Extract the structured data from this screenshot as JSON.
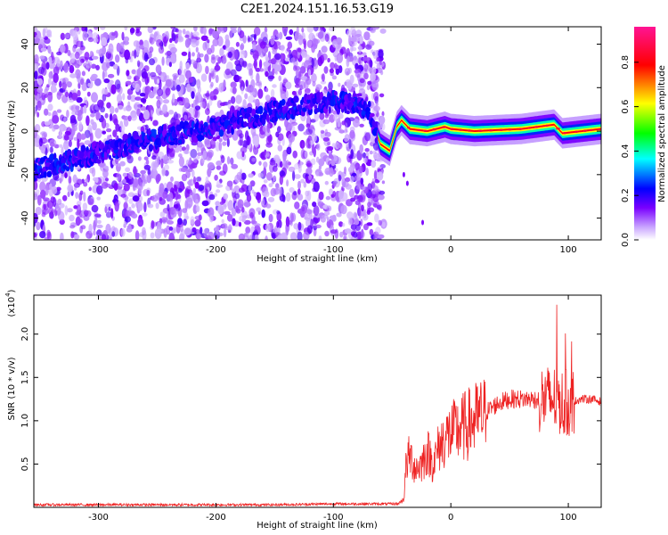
{
  "title": "C2E1.2024.151.16.53.G19",
  "chart_data": [
    {
      "type": "heatmap",
      "title": "",
      "xlabel": "Height of straight line (km)",
      "ylabel": "Frequency (Hz)",
      "xlim": [
        -355,
        128
      ],
      "ylim": [
        -50,
        48
      ],
      "xticks": [
        -300,
        -200,
        -100,
        0,
        100
      ],
      "xtick_labels": [
        "-300",
        "-200",
        "-100",
        "0",
        "100"
      ],
      "yticks": [
        -40,
        -20,
        0,
        20,
        40
      ],
      "ytick_labels": [
        "-40",
        "-20",
        "0",
        "20",
        "40"
      ],
      "colorbar": {
        "label": "Normalized spectral amplitude",
        "range": [
          0,
          0.96
        ],
        "ticks": [
          0.0,
          0.2,
          0.4,
          0.6,
          0.8
        ],
        "tick_labels": [
          "0.0",
          "0.2",
          "0.4",
          "0.6",
          "0.8"
        ],
        "colormap": [
          "#ffffff",
          "#7a00ff",
          "#0000ff",
          "#00ffff",
          "#00ff00",
          "#ffff00",
          "#ff0000",
          "#ff1493"
        ]
      },
      "noise_region": {
        "x": [
          -355,
          -57
        ],
        "y": [
          -50,
          48
        ],
        "typical_amplitude": 0.08
      },
      "ridge": [
        {
          "x": -355,
          "y": -18
        },
        {
          "x": -300,
          "y": -10
        },
        {
          "x": -250,
          "y": -3
        },
        {
          "x": -200,
          "y": 2
        },
        {
          "x": -150,
          "y": 9
        },
        {
          "x": -100,
          "y": 14
        },
        {
          "x": -70,
          "y": 10
        },
        {
          "x": -60,
          "y": -6
        },
        {
          "x": -52,
          "y": -9
        },
        {
          "x": -46,
          "y": 2
        },
        {
          "x": -42,
          "y": 5
        },
        {
          "x": -35,
          "y": 1
        },
        {
          "x": -20,
          "y": 0
        },
        {
          "x": -5,
          "y": 2
        },
        {
          "x": 0,
          "y": 1
        },
        {
          "x": 20,
          "y": 0
        },
        {
          "x": 60,
          "y": 1
        },
        {
          "x": 88,
          "y": 3
        },
        {
          "x": 95,
          "y": -1
        },
        {
          "x": 128,
          "y": 1
        }
      ],
      "ridge_amplitude_strong": 0.85
    },
    {
      "type": "line",
      "title": "",
      "xlabel": "Height of straight line (km)",
      "ylabel": "SNR (10 * v/v)",
      "y_multiplier_label": "(x10",
      "y_multiplier_exp": "4",
      "xlim": [
        -355,
        128
      ],
      "ylim": [
        0,
        2.45
      ],
      "xticks": [
        -300,
        -200,
        -100,
        0,
        100
      ],
      "xtick_labels": [
        "-300",
        "-200",
        "-100",
        "0",
        "100"
      ],
      "yticks": [
        0.5,
        1.0,
        1.5,
        2.0
      ],
      "ytick_labels": [
        "0.5",
        "1.0",
        "1.5",
        "2.0"
      ],
      "color": "#ee2222",
      "series": [
        {
          "values_note_free": true,
          "x": [
            -355,
            -300,
            -250,
            -200,
            -150,
            -100,
            -60,
            -45,
            -40,
            -38,
            -35,
            -30,
            -25,
            -20,
            -15,
            -10,
            -5,
            0,
            10,
            20,
            30,
            40,
            50,
            60,
            70,
            80,
            90,
            95,
            100,
            105,
            110,
            120,
            128
          ],
          "y": [
            0.03,
            0.03,
            0.03,
            0.03,
            0.03,
            0.04,
            0.04,
            0.04,
            0.1,
            0.5,
            0.6,
            0.45,
            0.5,
            0.65,
            0.5,
            0.7,
            0.8,
            0.85,
            0.92,
            1.0,
            1.1,
            1.2,
            1.25,
            1.25,
            1.25,
            1.25,
            1.25,
            1.2,
            1.2,
            1.22,
            1.25,
            1.25,
            1.22
          ]
        }
      ]
    }
  ]
}
